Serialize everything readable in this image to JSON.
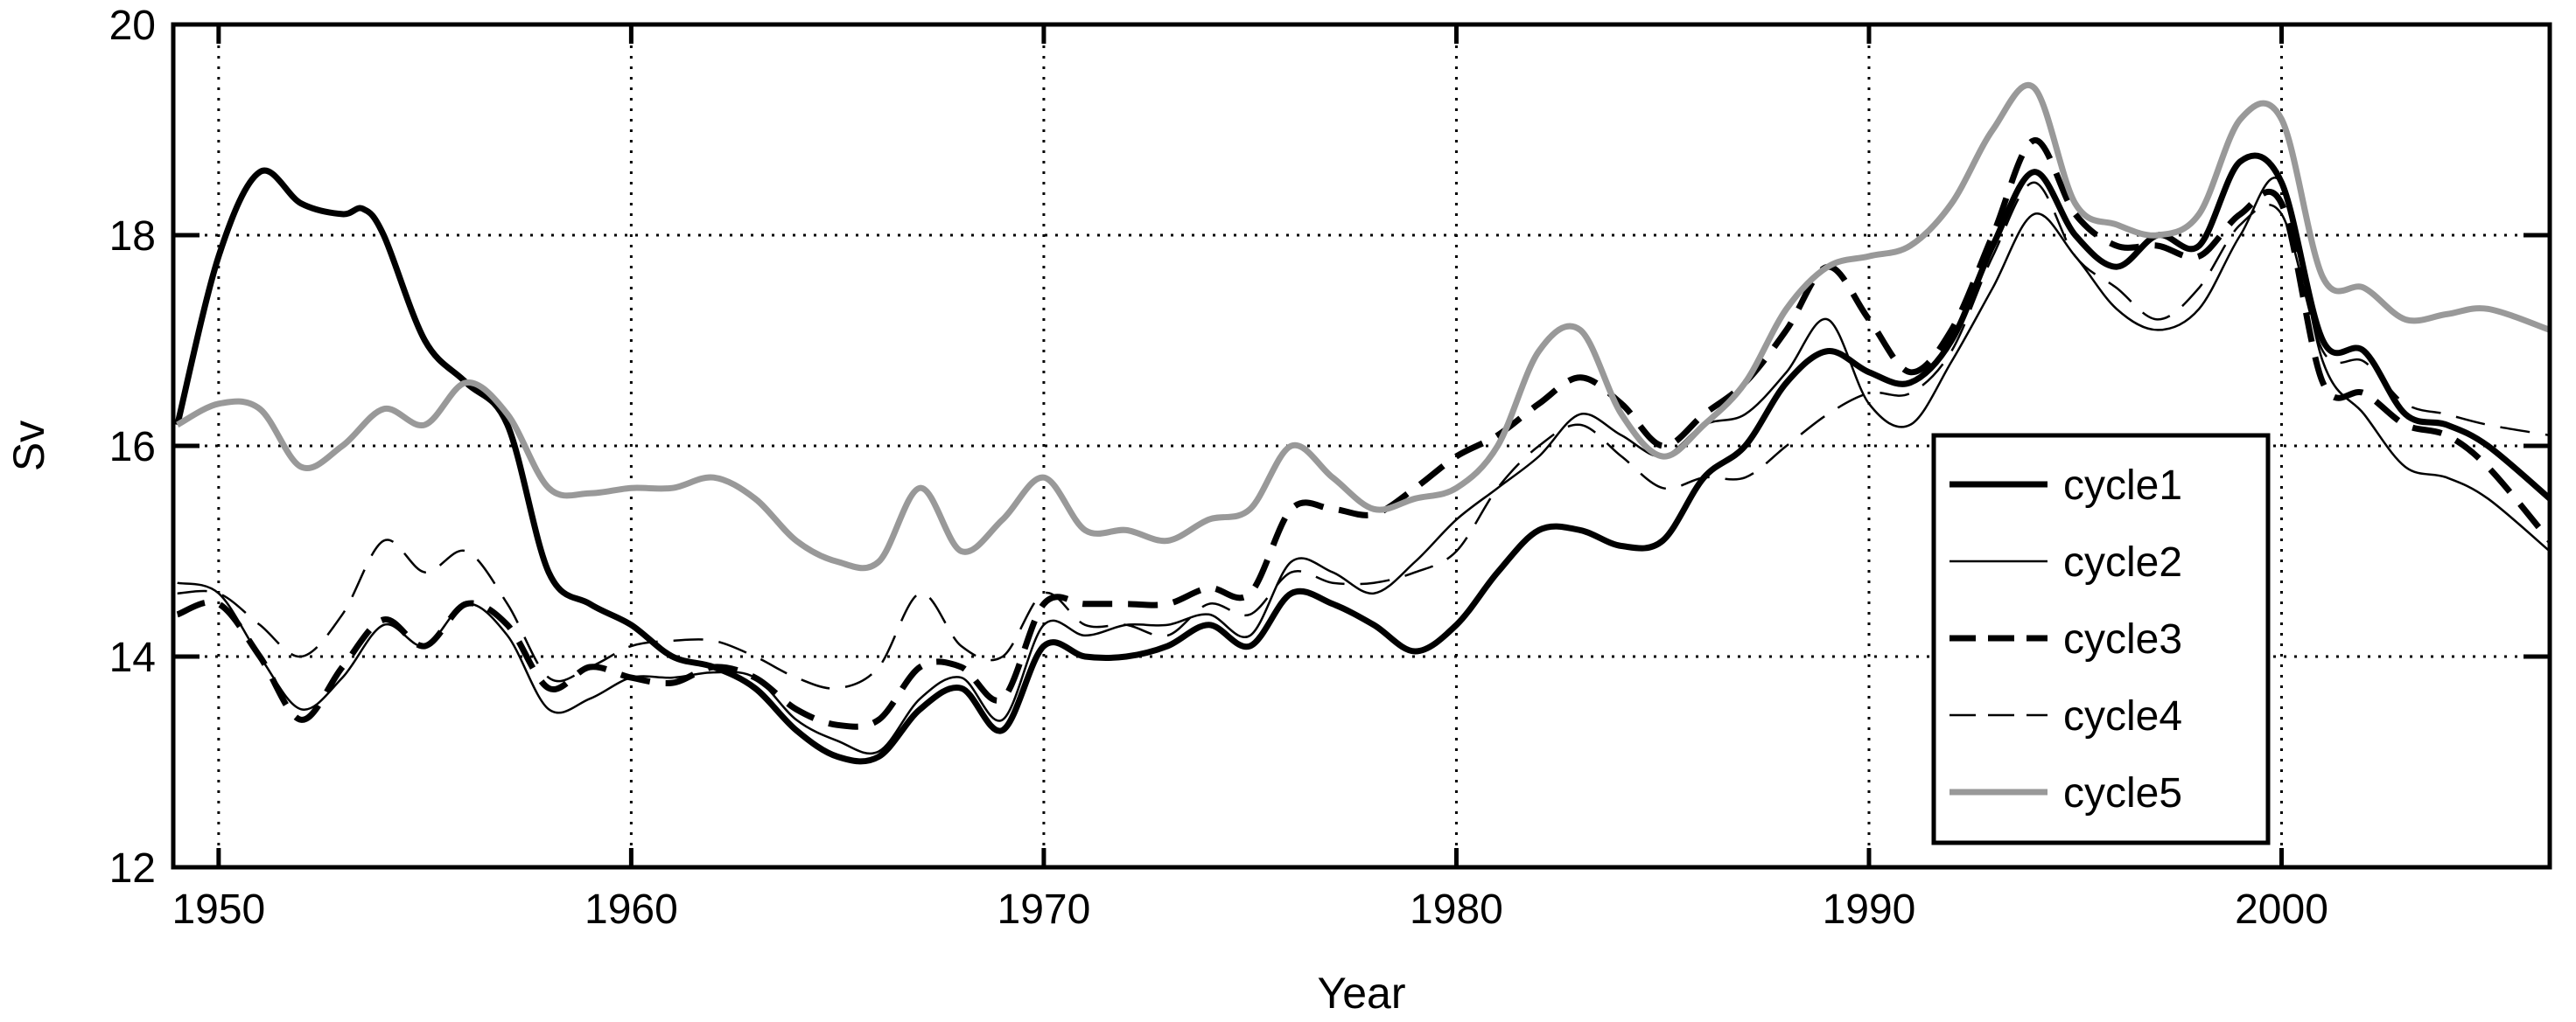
{
  "chart_data": {
    "type": "line",
    "title": "",
    "xlabel": "Year",
    "ylabel": "Sv",
    "xlim": [
      1948.9,
      2006.5
    ],
    "ylim": [
      12,
      20
    ],
    "xticks": [
      1950,
      1960,
      1970,
      1980,
      1990,
      2000
    ],
    "yticks": [
      12,
      14,
      16,
      18,
      20
    ],
    "xtick_labels": [
      "1950",
      "1960",
      "1970",
      "1980",
      "1990",
      "2000"
    ],
    "ytick_labels": [
      "12",
      "14",
      "16",
      "18",
      "20"
    ],
    "grid": "dotted",
    "legend_position": "lower-right",
    "series": [
      {
        "name": "cycle1",
        "color": "#000000",
        "style": "solid-thick",
        "x": [
          1949,
          1950,
          1951,
          1952,
          1953,
          1953.5,
          1954,
          1955,
          1956,
          1957,
          1958,
          1959,
          1960,
          1961,
          1962,
          1963,
          1964,
          1965,
          1966,
          1967,
          1968,
          1969,
          1970,
          1971,
          1972,
          1973,
          1974,
          1975,
          1976,
          1977,
          1978,
          1979,
          1980,
          1981,
          1982,
          1983,
          1984,
          1985,
          1986,
          1987,
          1988,
          1989,
          1990,
          1991,
          1992,
          1993,
          1994,
          1995,
          1996,
          1997,
          1998,
          1999,
          2000,
          2001,
          2002,
          2003,
          2004,
          2005,
          2006.5
        ],
        "values": [
          16.2,
          17.8,
          18.6,
          18.3,
          18.2,
          18.25,
          18.0,
          17.0,
          16.6,
          16.2,
          14.8,
          14.5,
          14.3,
          14.0,
          13.9,
          13.7,
          13.3,
          13.05,
          13.05,
          13.5,
          13.7,
          13.3,
          14.1,
          14.0,
          14.0,
          14.1,
          14.3,
          14.1,
          14.6,
          14.5,
          14.3,
          14.05,
          14.3,
          14.8,
          15.2,
          15.2,
          15.05,
          15.1,
          15.7,
          16.0,
          16.6,
          16.9,
          16.7,
          16.6,
          17.0,
          17.9,
          18.6,
          18.0,
          17.7,
          18.0,
          17.9,
          18.7,
          18.5,
          17.0,
          16.9,
          16.3,
          16.2,
          16.0,
          15.5
        ]
      },
      {
        "name": "cycle2",
        "color": "#000000",
        "style": "solid-thin",
        "x": [
          1949,
          1950,
          1951,
          1952,
          1953,
          1954,
          1955,
          1956,
          1957,
          1958,
          1959,
          1960,
          1961,
          1962,
          1963,
          1964,
          1965,
          1966,
          1967,
          1968,
          1969,
          1970,
          1971,
          1972,
          1973,
          1974,
          1975,
          1976,
          1977,
          1978,
          1979,
          1980,
          1981,
          1982,
          1983,
          1984,
          1985,
          1986,
          1987,
          1988,
          1989,
          1990,
          1991,
          1992,
          1993,
          1994,
          1995,
          1996,
          1997,
          1998,
          1999,
          2000,
          2001,
          2002,
          2003,
          2004,
          2005,
          2006.5
        ],
        "values": [
          14.7,
          14.6,
          14.0,
          13.5,
          13.8,
          14.3,
          14.1,
          14.5,
          14.2,
          13.5,
          13.6,
          13.8,
          13.8,
          13.85,
          13.8,
          13.4,
          13.2,
          13.1,
          13.6,
          13.8,
          13.4,
          14.3,
          14.2,
          14.3,
          14.3,
          14.4,
          14.2,
          14.9,
          14.8,
          14.6,
          14.9,
          15.3,
          15.6,
          15.9,
          16.3,
          16.1,
          15.9,
          16.2,
          16.3,
          16.7,
          17.2,
          16.4,
          16.2,
          16.8,
          17.5,
          18.2,
          17.8,
          17.3,
          17.1,
          17.3,
          18.0,
          18.5,
          16.8,
          16.3,
          15.8,
          15.7,
          15.5,
          15.0
        ]
      },
      {
        "name": "cycle3",
        "color": "#000000",
        "style": "dashed-thick",
        "x": [
          1949,
          1950,
          1951,
          1952,
          1953,
          1954,
          1955,
          1956,
          1957,
          1958,
          1959,
          1960,
          1961,
          1962,
          1963,
          1964,
          1965,
          1966,
          1967,
          1968,
          1969,
          1970,
          1971,
          1972,
          1973,
          1974,
          1975,
          1976,
          1977,
          1978,
          1979,
          1980,
          1981,
          1982,
          1983,
          1984,
          1985,
          1986,
          1987,
          1988,
          1989,
          1990,
          1991,
          1992,
          1993,
          1994,
          1995,
          1996,
          1997,
          1998,
          1999,
          2000,
          2001,
          2002,
          2003,
          2004,
          2005,
          2006.5
        ],
        "values": [
          14.4,
          14.5,
          14.0,
          13.4,
          13.9,
          14.35,
          14.1,
          14.5,
          14.3,
          13.7,
          13.9,
          13.8,
          13.75,
          13.9,
          13.8,
          13.5,
          13.35,
          13.4,
          13.9,
          13.9,
          13.6,
          14.5,
          14.5,
          14.5,
          14.5,
          14.65,
          14.6,
          15.4,
          15.4,
          15.35,
          15.6,
          15.9,
          16.1,
          16.4,
          16.65,
          16.4,
          16.0,
          16.3,
          16.6,
          17.1,
          17.7,
          17.2,
          16.7,
          17.1,
          18.0,
          18.9,
          18.2,
          17.9,
          17.9,
          17.8,
          18.2,
          18.3,
          16.6,
          16.5,
          16.2,
          16.1,
          15.8,
          15.1
        ]
      },
      {
        "name": "cycle4",
        "color": "#000000",
        "style": "dashed-thin",
        "x": [
          1949,
          1950,
          1951,
          1952,
          1953,
          1954,
          1955,
          1956,
          1957,
          1958,
          1959,
          1960,
          1961,
          1962,
          1963,
          1964,
          1965,
          1966,
          1967,
          1968,
          1969,
          1970,
          1971,
          1972,
          1973,
          1974,
          1975,
          1976,
          1977,
          1978,
          1979,
          1980,
          1981,
          1982,
          1983,
          1984,
          1985,
          1986,
          1987,
          1988,
          1989,
          1990,
          1991,
          1992,
          1993,
          1994,
          1995,
          1996,
          1997,
          1998,
          1999,
          2000,
          2001,
          2002,
          2003,
          2004,
          2005,
          2006.5
        ],
        "values": [
          14.6,
          14.6,
          14.3,
          14.0,
          14.4,
          15.1,
          14.8,
          15.0,
          14.5,
          13.8,
          13.9,
          14.1,
          14.15,
          14.15,
          14.0,
          13.8,
          13.7,
          13.9,
          14.6,
          14.1,
          14.0,
          14.6,
          14.3,
          14.3,
          14.2,
          14.5,
          14.4,
          14.8,
          14.7,
          14.7,
          14.8,
          15.0,
          15.6,
          16.0,
          16.2,
          15.9,
          15.6,
          15.7,
          15.7,
          16.0,
          16.3,
          16.5,
          16.5,
          16.9,
          17.8,
          18.5,
          17.8,
          17.5,
          17.2,
          17.5,
          18.1,
          18.2,
          16.9,
          16.8,
          16.4,
          16.3,
          16.2,
          16.1
        ]
      },
      {
        "name": "cycle5",
        "color": "#999999",
        "style": "solid-thick",
        "x": [
          1949,
          1950,
          1951,
          1952,
          1953,
          1954,
          1955,
          1956,
          1957,
          1958,
          1959,
          1960,
          1961,
          1962,
          1963,
          1964,
          1965,
          1966,
          1967,
          1968,
          1969,
          1970,
          1971,
          1972,
          1973,
          1974,
          1975,
          1976,
          1977,
          1978,
          1979,
          1980,
          1981,
          1982,
          1983,
          1984,
          1985,
          1986,
          1987,
          1988,
          1989,
          1990,
          1991,
          1992,
          1993,
          1994,
          1995,
          1996,
          1997,
          1998,
          1999,
          2000,
          2001,
          2002,
          2003,
          2004,
          2005,
          2006.5
        ],
        "values": [
          16.2,
          16.4,
          16.35,
          15.8,
          16.0,
          16.35,
          16.2,
          16.6,
          16.3,
          15.6,
          15.55,
          15.6,
          15.6,
          15.7,
          15.5,
          15.1,
          14.9,
          14.9,
          15.6,
          15.0,
          15.3,
          15.7,
          15.2,
          15.2,
          15.1,
          15.3,
          15.4,
          16.0,
          15.7,
          15.4,
          15.5,
          15.6,
          16.0,
          16.9,
          17.1,
          16.3,
          15.9,
          16.2,
          16.6,
          17.3,
          17.7,
          17.8,
          17.9,
          18.3,
          19.0,
          19.4,
          18.3,
          18.1,
          18.0,
          18.2,
          19.1,
          19.1,
          17.6,
          17.5,
          17.2,
          17.25,
          17.3,
          17.1
        ]
      }
    ]
  }
}
